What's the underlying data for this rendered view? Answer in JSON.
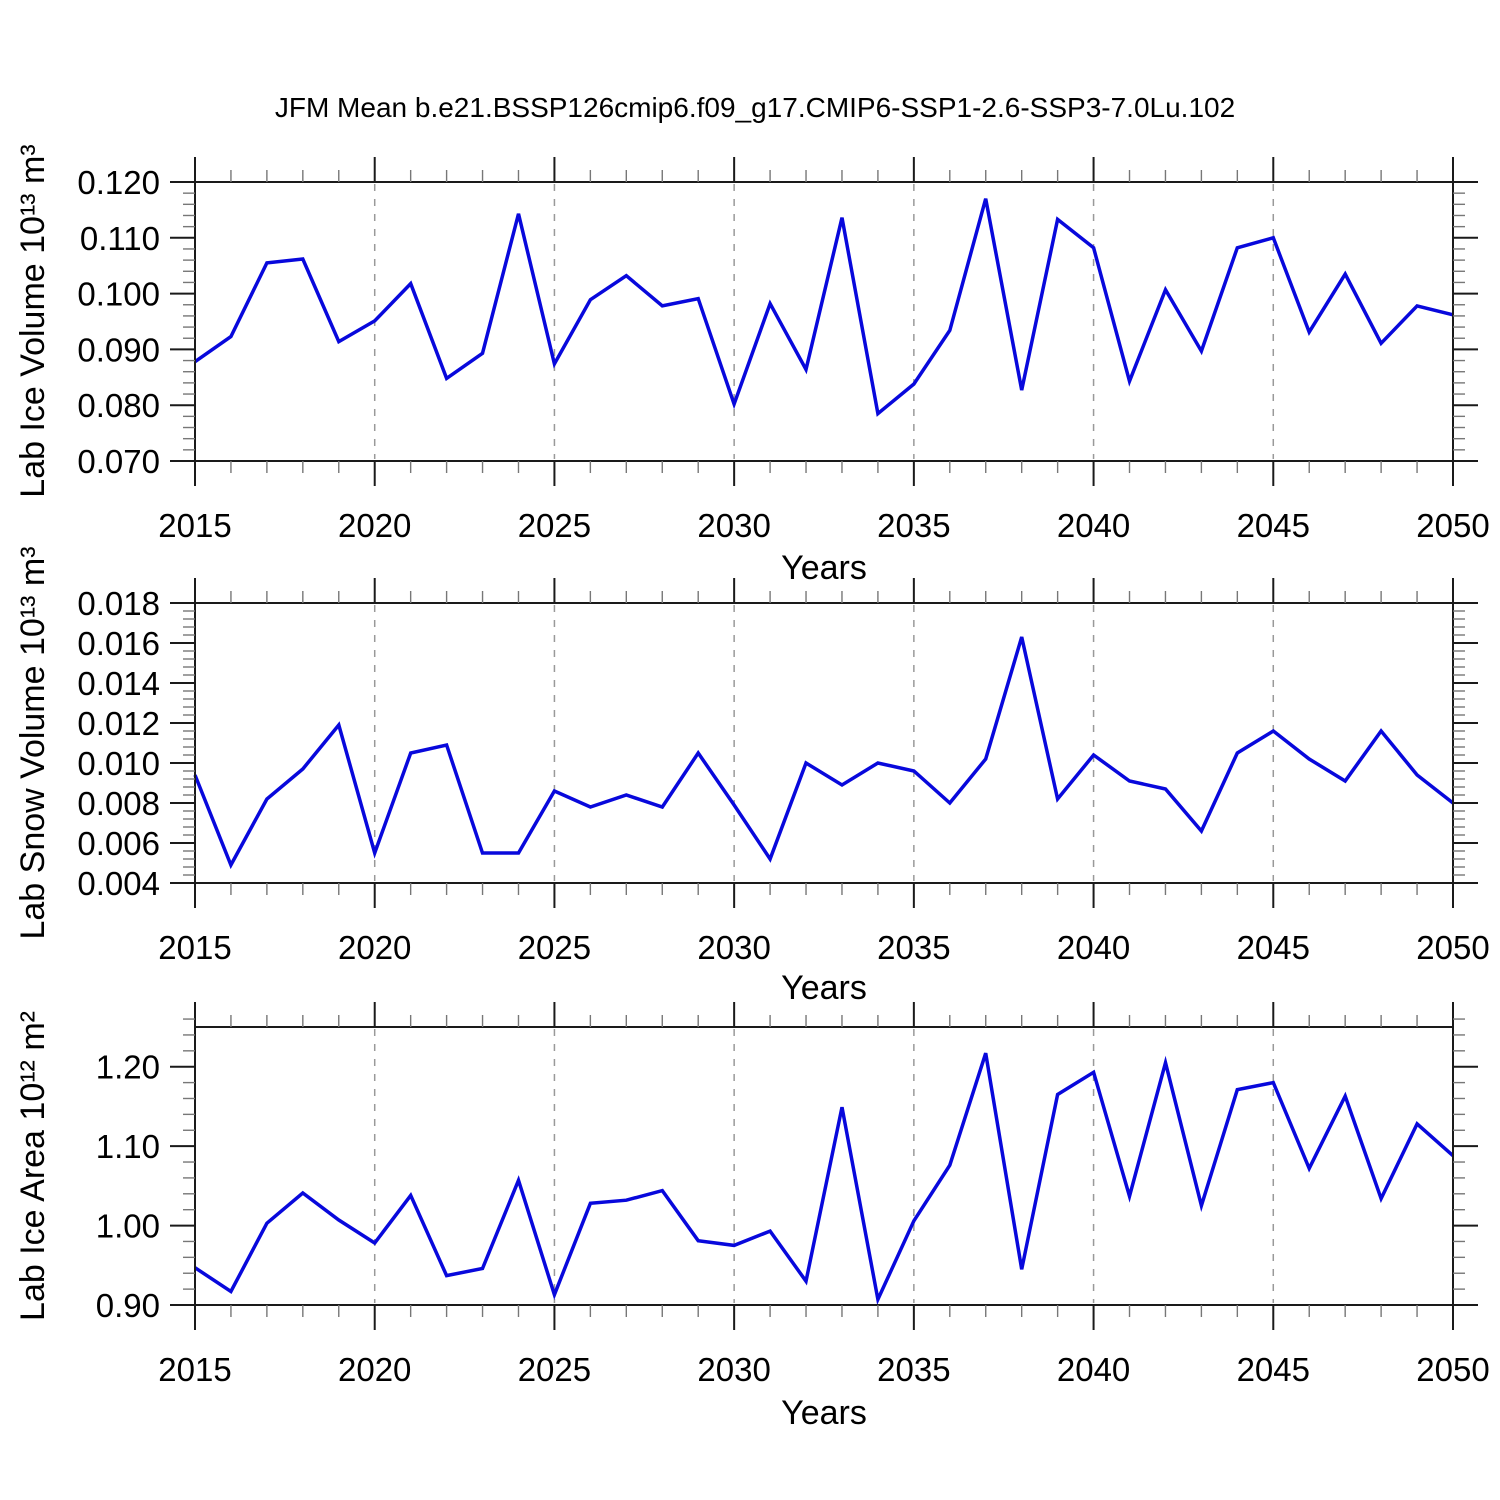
{
  "title": "JFM Mean b.e21.BSSP126cmip6.f09_g17.CMIP6-SSP1-2.6-SSP3-7.0Lu.102",
  "colors": {
    "line": "#0808dc",
    "frame": "#1a1a1a",
    "major_tick": "#1a1a1a",
    "minor_tick": "#777777",
    "gridline": "#999999",
    "text": "#000000",
    "background": "#ffffff"
  },
  "x_axis": {
    "label": "Years",
    "range": [
      2015,
      2050
    ],
    "tick_labels": [
      "2015",
      "2020",
      "2025",
      "2030",
      "2035",
      "2040",
      "2045",
      "2050"
    ],
    "major_step": 5,
    "minor_step": 1,
    "gridline_years": [
      2020,
      2025,
      2030,
      2035,
      2040,
      2045
    ]
  },
  "chart_data": [
    {
      "type": "line",
      "title": "JFM Mean b.e21.BSSP126cmip6.f09_g17.CMIP6-SSP1-2.6-SSP3-7.0Lu.102",
      "ylabel": "Lab Ice Volume 10¹³ m³",
      "xlabel": "Years",
      "ylim": [
        0.07,
        0.12
      ],
      "ytick_labels": [
        "0.070",
        "0.080",
        "0.090",
        "0.100",
        "0.110",
        "0.120"
      ],
      "yminor_step": 0.002,
      "grid": "vertical-dashed",
      "legend": "none",
      "x": [
        2015,
        2016,
        2017,
        2018,
        2019,
        2020,
        2021,
        2022,
        2023,
        2024,
        2025,
        2026,
        2027,
        2028,
        2029,
        2030,
        2031,
        2032,
        2033,
        2034,
        2035,
        2036,
        2037,
        2038,
        2039,
        2040,
        2041,
        2042,
        2043,
        2044,
        2045,
        2046,
        2047,
        2048,
        2049,
        2050
      ],
      "values": [
        0.0878,
        0.0923,
        0.1055,
        0.1062,
        0.0914,
        0.0951,
        0.1018,
        0.0848,
        0.0893,
        0.1143,
        0.0874,
        0.0989,
        0.1032,
        0.0978,
        0.0991,
        0.0802,
        0.0982,
        0.0864,
        0.1136,
        0.0785,
        0.0838,
        0.0934,
        0.117,
        0.0827,
        0.1133,
        0.1082,
        0.0843,
        0.1007,
        0.0897,
        0.1082,
        0.11,
        0.0931,
        0.1035,
        0.0911,
        0.0978,
        0.0962
      ]
    },
    {
      "type": "line",
      "title": "",
      "ylabel": "Lab Snow Volume 10¹³ m³",
      "xlabel": "Years",
      "ylim": [
        0.004,
        0.018
      ],
      "ytick_labels": [
        "0.004",
        "0.006",
        "0.008",
        "0.010",
        "0.012",
        "0.014",
        "0.016",
        "0.018"
      ],
      "yminor_step": 0.0004,
      "grid": "vertical-dashed",
      "legend": "none",
      "x": [
        2015,
        2016,
        2017,
        2018,
        2019,
        2020,
        2021,
        2022,
        2023,
        2024,
        2025,
        2026,
        2027,
        2028,
        2029,
        2030,
        2031,
        2032,
        2033,
        2034,
        2035,
        2036,
        2037,
        2038,
        2039,
        2040,
        2041,
        2042,
        2043,
        2044,
        2045,
        2046,
        2047,
        2048,
        2049,
        2050
      ],
      "values": [
        0.0094,
        0.0049,
        0.0082,
        0.0097,
        0.0119,
        0.0055,
        0.0105,
        0.0109,
        0.0055,
        0.0055,
        0.0086,
        0.0078,
        0.0084,
        0.0078,
        0.0105,
        0.0079,
        0.0052,
        0.01,
        0.0089,
        0.01,
        0.0096,
        0.008,
        0.0102,
        0.0163,
        0.0082,
        0.0104,
        0.0091,
        0.0087,
        0.0066,
        0.0105,
        0.0116,
        0.0102,
        0.0091,
        0.0116,
        0.0094,
        0.008
      ]
    },
    {
      "type": "line",
      "title": "",
      "ylabel": "Lab Ice Area 10¹² m²",
      "xlabel": "Years",
      "ylim": [
        0.9,
        1.25
      ],
      "ytick_labels": [
        "0.90",
        "1.00",
        "1.10",
        "1.20"
      ],
      "yminor_step": 0.02,
      "grid": "vertical-dashed",
      "legend": "none",
      "x": [
        2015,
        2016,
        2017,
        2018,
        2019,
        2020,
        2021,
        2022,
        2023,
        2024,
        2025,
        2026,
        2027,
        2028,
        2029,
        2030,
        2031,
        2032,
        2033,
        2034,
        2035,
        2036,
        2037,
        2038,
        2039,
        2040,
        2041,
        2042,
        2043,
        2044,
        2045,
        2046,
        2047,
        2048,
        2049,
        2050
      ],
      "values": [
        0.947,
        0.917,
        1.003,
        1.041,
        1.007,
        0.978,
        1.038,
        0.937,
        0.946,
        1.057,
        0.913,
        1.028,
        1.032,
        1.044,
        0.981,
        0.975,
        0.993,
        0.93,
        1.149,
        0.907,
        1.006,
        1.076,
        1.217,
        0.945,
        1.165,
        1.193,
        1.037,
        1.205,
        1.025,
        1.171,
        1.18,
        1.072,
        1.163,
        1.034,
        1.128,
        1.088
      ]
    }
  ]
}
